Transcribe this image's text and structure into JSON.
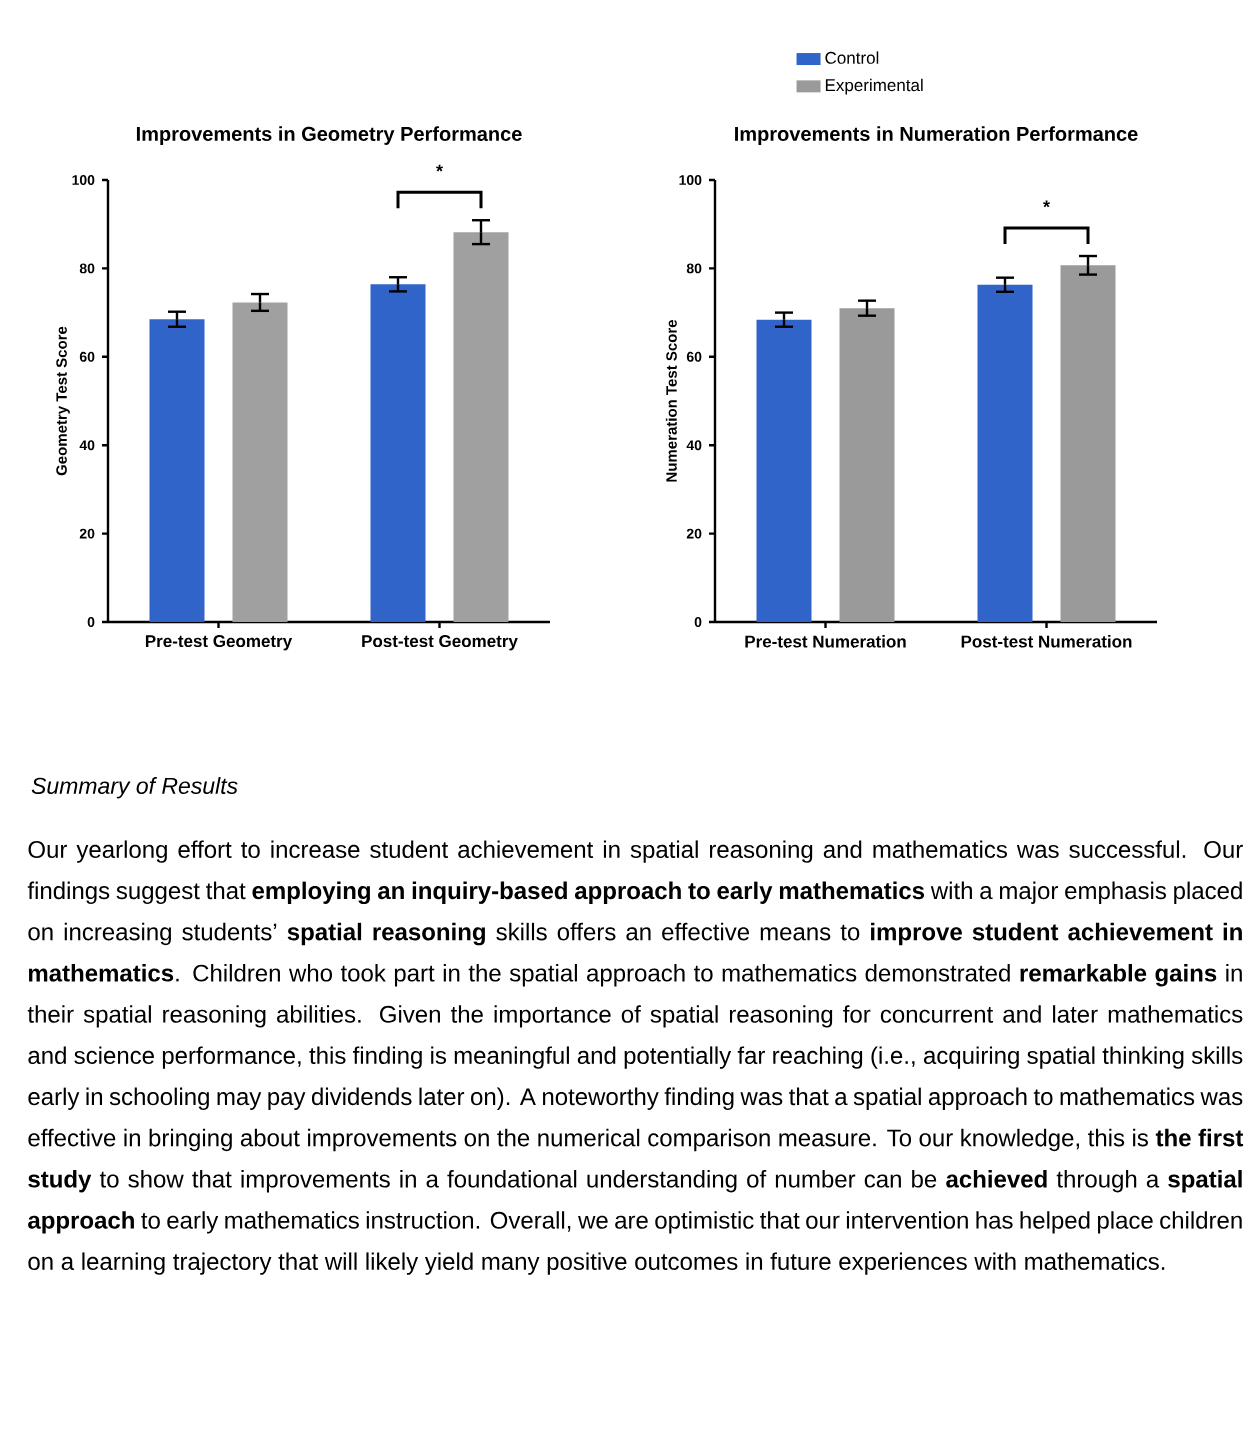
{
  "chart_data": [
    {
      "type": "bar",
      "title": "Improvements in Geometry Performance",
      "ylabel": "Geometry Test Score",
      "categories": [
        "Pre-test Geometry",
        "Post-test Geometry"
      ],
      "series": [
        {
          "color": "#3064c8",
          "values": [
            68.5,
            76.4
          ],
          "errors": [
            1.7,
            1.6
          ]
        },
        {
          "color": "#a0a0a0",
          "values": [
            72.3,
            88.2
          ],
          "errors": [
            1.9,
            2.7
          ]
        }
      ],
      "ylim": [
        0,
        100
      ],
      "yticks": [
        0,
        20,
        40,
        60,
        80,
        100
      ],
      "annotations": [
        "*"
      ]
    },
    {
      "type": "bar",
      "title": "Improvements in Numeration Performance",
      "ylabel": "Numeration Test Score",
      "categories": [
        "Pre-test Numeration",
        "Post-test Numeration"
      ],
      "series": [
        {
          "name": "Control",
          "color": "#3064c8",
          "values": [
            68.4,
            76.3
          ],
          "errors": [
            1.6,
            1.6
          ]
        },
        {
          "name": "Experimental",
          "color": "#9a9a9a",
          "values": [
            71.0,
            80.7
          ],
          "errors": [
            1.7,
            2.1
          ]
        }
      ],
      "ylim": [
        0,
        100
      ],
      "yticks": [
        0,
        20,
        40,
        60,
        80,
        100
      ],
      "legend": "top",
      "annotations": [
        "*"
      ]
    },
    {
      "type": "other",
      "title": "Summary of Results",
      "annotations": [
        "Our yearlong effort to increase student achievement in spatial reasoning and mathematics was successful. Our findings suggest that **employing an inquiry-based approach to early mathematics** with a major emphasis placed on increasing students’ **spatial reasoning** skills offers an effective means to **improve student achievement in mathematics**. Children who took part in the spatial approach to mathematics demonstrated **remarkable gains** in their spatial reasoning abilities. Given the importance of spatial reasoning for concurrent and later mathematics and science performance, this finding is meaningful and potentially far reaching (i.e., acquiring spatial thinking skills early in schooling may pay dividends later on). A noteworthy finding was that a spatial approach to mathematics was effective in bringing about improvements on the numerical comparison measure. To our knowledge, this is **the first study** to show that improvements in a foundational understanding of number can be **achieved** through a **spatial approach** to early mathematics instruction. Overall, we are optimistic that our intervention has helped place children on a learning trajectory that will likely yield many positive outcomes in future experiences with mathematics."
      ]
    }
  ]
}
